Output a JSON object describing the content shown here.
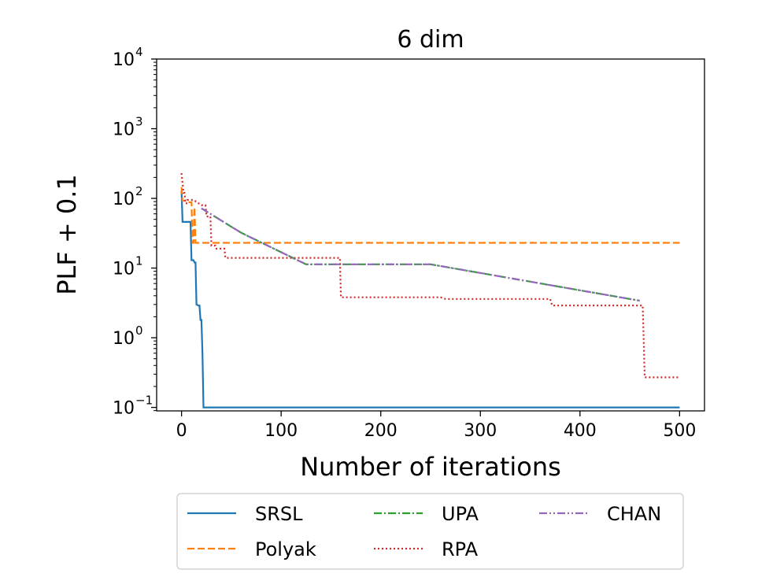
{
  "chart_data": {
    "type": "line",
    "title": "6 dim",
    "xlabel": "Number of iterations",
    "ylabel": "PLF + 0.1",
    "xlim": [
      -25,
      525
    ],
    "xticks": [
      0,
      100,
      200,
      300,
      400,
      500
    ],
    "yscale": "log",
    "ylim_exp": [
      -1.05,
      4
    ],
    "ytick_exps": [
      -1,
      0,
      1,
      2,
      3,
      4
    ],
    "ytick_base": "10",
    "grid": false,
    "legend_position": "below",
    "series": [
      {
        "name": "SRSL",
        "color": "#1f77b4",
        "dash": "",
        "points": [
          [
            0,
            130
          ],
          [
            1,
            46
          ],
          [
            2,
            46
          ],
          [
            8,
            46
          ],
          [
            9,
            46
          ],
          [
            10,
            13
          ],
          [
            12,
            13
          ],
          [
            13,
            12
          ],
          [
            14,
            12
          ],
          [
            15,
            3
          ],
          [
            17,
            2.9
          ],
          [
            18,
            2.9
          ],
          [
            19,
            1.8
          ],
          [
            20,
            1.8
          ],
          [
            21,
            0.6
          ],
          [
            22,
            0.1
          ],
          [
            500,
            0.1
          ]
        ]
      },
      {
        "name": "Polyak",
        "color": "#ff7f0e",
        "dash": "9,4",
        "points": [
          [
            0,
            145
          ],
          [
            1,
            92
          ],
          [
            5,
            92
          ],
          [
            6,
            88
          ],
          [
            10,
            88
          ],
          [
            11,
            23
          ],
          [
            12,
            23
          ],
          [
            13,
            75
          ],
          [
            14,
            23
          ],
          [
            500,
            23
          ]
        ]
      },
      {
        "name": "UPA",
        "color": "#2ca02c",
        "dash": "10,3,2,3",
        "points": [
          [
            20,
            72
          ],
          [
            60,
            32
          ],
          [
            125,
            11.3
          ],
          [
            250,
            11.3
          ],
          [
            300,
            8.5
          ],
          [
            460,
            3.4
          ]
        ]
      },
      {
        "name": "RPA",
        "color": "#d62728",
        "dash": "2,3",
        "points": [
          [
            0,
            230
          ],
          [
            2,
            120
          ],
          [
            3,
            120
          ],
          [
            4,
            85
          ],
          [
            5,
            85
          ],
          [
            6,
            95
          ],
          [
            12,
            95
          ],
          [
            20,
            80
          ],
          [
            24,
            80
          ],
          [
            25,
            55
          ],
          [
            29,
            55
          ],
          [
            30,
            21
          ],
          [
            34,
            21
          ],
          [
            35,
            19
          ],
          [
            43,
            19
          ],
          [
            44,
            14
          ],
          [
            159,
            14
          ],
          [
            160,
            3.8
          ],
          [
            260,
            3.8
          ],
          [
            265,
            3.6
          ],
          [
            370,
            3.6
          ],
          [
            372,
            2.9
          ],
          [
            463,
            2.9
          ],
          [
            465,
            0.27
          ],
          [
            500,
            0.27
          ]
        ]
      },
      {
        "name": "CHAN",
        "color": "#9467bd",
        "dash": "10,3,2,3,2,3",
        "points": [
          [
            20,
            72
          ],
          [
            60,
            32
          ],
          [
            125,
            11.3
          ],
          [
            250,
            11.3
          ],
          [
            300,
            8.5
          ],
          [
            460,
            3.4
          ]
        ]
      }
    ],
    "legend": {
      "columns": [
        [
          "SRSL",
          "Polyak"
        ],
        [
          "UPA",
          "RPA"
        ],
        [
          "CHAN"
        ]
      ]
    }
  }
}
